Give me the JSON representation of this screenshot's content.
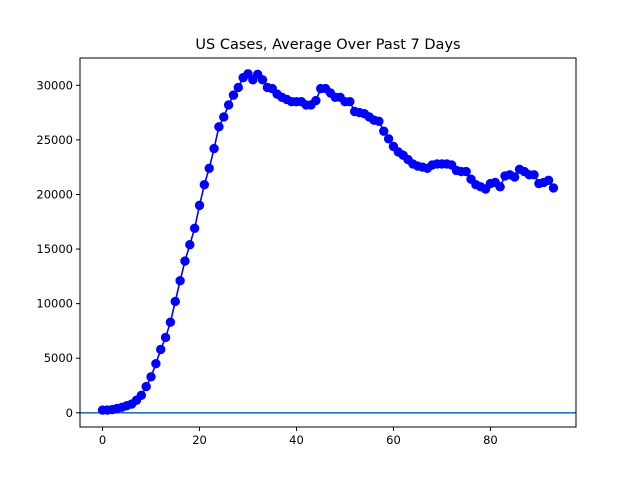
{
  "chart_data": {
    "type": "line",
    "title": "US Cases, Average Over Past 7 Days",
    "xlabel": "",
    "ylabel": "",
    "xlim": [
      -4.65,
      97.65
    ],
    "ylim": [
      -1300,
      32500
    ],
    "x_ticks": [
      0,
      20,
      40,
      60,
      80
    ],
    "y_ticks": [
      0,
      5000,
      10000,
      15000,
      20000,
      25000,
      30000
    ],
    "grid": false,
    "series": [
      {
        "color": "#0000ff",
        "marker": "circle",
        "x": [
          0,
          1,
          2,
          3,
          4,
          5,
          6,
          7,
          8,
          9,
          10,
          11,
          12,
          13,
          14,
          15,
          16,
          17,
          18,
          19,
          20,
          21,
          22,
          23,
          24,
          25,
          26,
          27,
          28,
          29,
          30,
          31,
          32,
          33,
          34,
          35,
          36,
          37,
          38,
          39,
          40,
          41,
          42,
          43,
          44,
          45,
          46,
          47,
          48,
          49,
          50,
          51,
          52,
          53,
          54,
          55,
          56,
          57,
          58,
          59,
          60,
          61,
          62,
          63,
          64,
          65,
          66,
          67,
          68,
          69,
          70,
          71,
          72,
          73,
          74,
          75,
          76,
          77,
          78,
          79,
          80,
          81,
          82,
          83,
          84,
          85,
          86,
          87,
          88,
          89,
          90,
          91,
          92,
          93
        ],
        "y": [
          250,
          250,
          300,
          400,
          500,
          650,
          800,
          1150,
          1600,
          2400,
          3300,
          4500,
          5800,
          6900,
          8300,
          10200,
          12100,
          13900,
          15400,
          16900,
          19000,
          20900,
          22400,
          24200,
          26200,
          27100,
          28200,
          29100,
          29800,
          30700,
          31050,
          30500,
          31000,
          30500,
          29800,
          29700,
          29200,
          28900,
          28700,
          28500,
          28500,
          28500,
          28200,
          28200,
          28600,
          29700,
          29700,
          29300,
          28900,
          28900,
          28500,
          28500,
          27600,
          27500,
          27400,
          27100,
          26800,
          26700,
          25800,
          25100,
          24400,
          23900,
          23600,
          23200,
          22800,
          22600,
          22500,
          22400,
          22700,
          22800,
          22800,
          22800,
          22700,
          22200,
          22100,
          22100,
          21400,
          20900,
          20700,
          20500,
          21000,
          21100,
          20700,
          21700,
          21800,
          21600,
          22300,
          22100,
          21800,
          21800,
          21000,
          21100,
          21300,
          20600
        ]
      }
    ],
    "reference_line": {
      "y": 0,
      "color": "#1f77b4"
    }
  }
}
